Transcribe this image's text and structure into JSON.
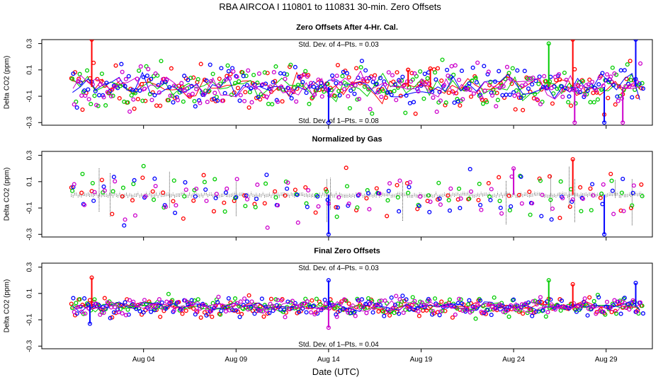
{
  "title": "RBA   AIRCOA I   110801 to 110831   30-min. Zero Offsets",
  "xlabel": "Date (UTC)",
  "xticks": [
    "Aug 04",
    "Aug 09",
    "Aug 14",
    "Aug 19",
    "Aug 24",
    "Aug 29"
  ],
  "colors": {
    "s1": "#ff0000",
    "s2": "#00cc00",
    "s3": "#0000ff",
    "s4": "#cc00cc",
    "norm": "#000000"
  },
  "chart_data": [
    {
      "type": "scatter",
      "title": "Zero Offsets After 4-Hr. Cal.",
      "ylabel": "Delta CO2 (ppm)",
      "yticks": [
        "0.3",
        "0.1",
        "-0.1",
        "-0.3"
      ],
      "ylim": [
        -0.32,
        0.33
      ],
      "xlim": [
        -1.5,
        31.5
      ],
      "x_ticks_days": [
        4,
        9,
        14,
        19,
        24,
        29
      ],
      "annotation_top": "Std. Dev. of 4–Pts. = 0.03",
      "annotation_bottom": "Std. Dev. of 1–Pts. = 0.08",
      "series_names": [
        "red",
        "green",
        "blue",
        "magenta"
      ],
      "x_range_days": [
        0.1,
        31.0
      ],
      "typical_center": -0.03,
      "typical_spread": 0.08,
      "spikes": [
        {
          "x": 1.2,
          "y": 0.33,
          "series": "red"
        },
        {
          "x": 14.0,
          "y": -0.3,
          "series": "blue"
        },
        {
          "x": 25.9,
          "y": 0.3,
          "series": "green"
        },
        {
          "x": 27.2,
          "y": 0.33,
          "series": "red"
        },
        {
          "x": 27.3,
          "y": -0.3,
          "series": "magenta"
        },
        {
          "x": 28.9,
          "y": -0.3,
          "series": "blue"
        },
        {
          "x": 29.9,
          "y": -0.3,
          "series": "magenta"
        },
        {
          "x": 30.6,
          "y": 0.33,
          "series": "blue"
        },
        {
          "x": 18.3,
          "y": 0.1,
          "series": "red"
        },
        {
          "x": 19.5,
          "y": 0.11,
          "series": "red"
        }
      ]
    },
    {
      "type": "scatter",
      "title": "Normalized by Gas",
      "ylabel": "Delta CO2 (ppm)",
      "yticks": [
        "0.3",
        "0.1",
        "-0.1",
        "-0.3"
      ],
      "ylim": [
        -0.32,
        0.33
      ],
      "xlim": [
        -1.5,
        31.5
      ],
      "series_names": [
        "red",
        "green",
        "blue",
        "magenta",
        "normalized-black"
      ],
      "normalized_level": 0.0,
      "typical_spread": 0.09,
      "spikes": [
        {
          "x": 27.2,
          "y": 0.27,
          "series": "red"
        },
        {
          "x": 14.0,
          "y": -0.3,
          "series": "blue"
        },
        {
          "x": 28.9,
          "y": -0.3,
          "series": "blue"
        },
        {
          "x": 24.0,
          "y": 0.2,
          "series": "magenta"
        }
      ]
    },
    {
      "type": "scatter",
      "title": "Final Zero Offsets",
      "ylabel": "Delta CO2 (ppm)",
      "yticks": [
        "0.3",
        "0.1",
        "-0.1",
        "-0.3"
      ],
      "ylim": [
        -0.32,
        0.33
      ],
      "xlim": [
        -1.5,
        31.5
      ],
      "annotation_top": "Std. Dev. of 4–Pts. = 0.03",
      "annotation_bottom": "Std. Dev. of 1–Pts. = 0.04",
      "series_names": [
        "red",
        "green",
        "blue",
        "magenta"
      ],
      "typical_center": 0.0,
      "typical_spread": 0.035,
      "spikes": [
        {
          "x": 1.2,
          "y": 0.22,
          "series": "red"
        },
        {
          "x": 14.0,
          "y": 0.2,
          "series": "blue"
        },
        {
          "x": 14.0,
          "y": -0.16,
          "series": "magenta"
        },
        {
          "x": 25.9,
          "y": 0.2,
          "series": "green"
        },
        {
          "x": 27.2,
          "y": 0.17,
          "series": "red"
        },
        {
          "x": 30.6,
          "y": 0.18,
          "series": "blue"
        },
        {
          "x": 1.1,
          "y": -0.13,
          "series": "blue"
        }
      ]
    }
  ]
}
